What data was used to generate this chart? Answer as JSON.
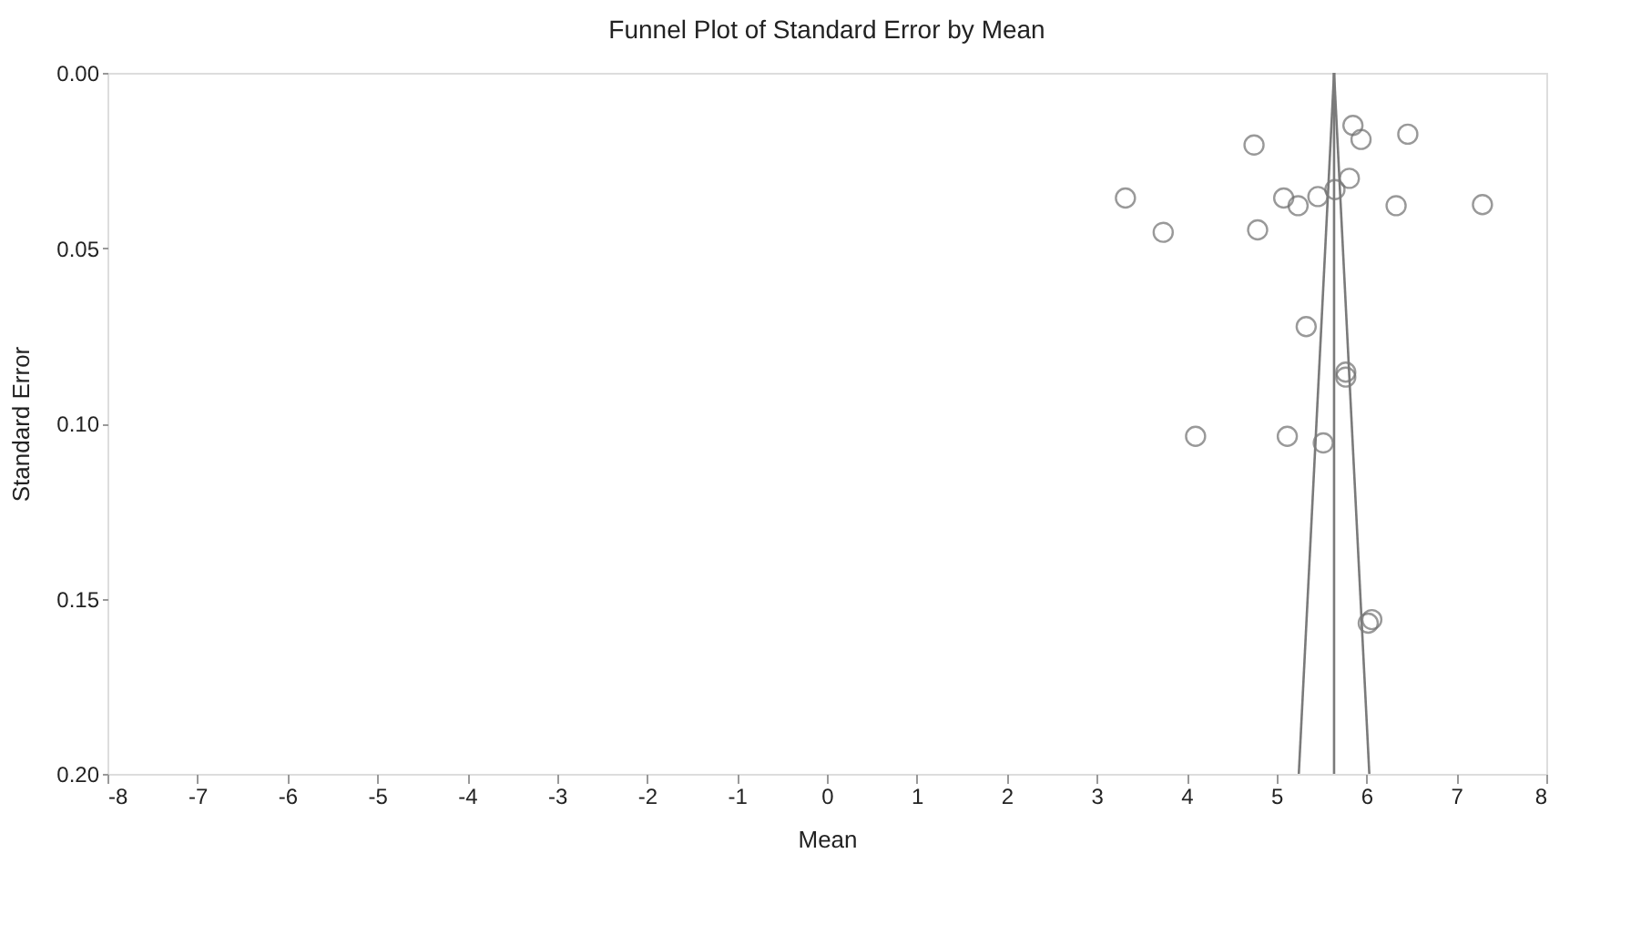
{
  "chart_data": {
    "type": "scatter",
    "title": "Funnel Plot of Standard Error by Mean",
    "xlabel": "Mean",
    "ylabel": "Standard Error",
    "xlim": [
      -8,
      8
    ],
    "xticks": [
      -8,
      -7,
      -6,
      -5,
      -4,
      -3,
      -2,
      -1,
      0,
      1,
      2,
      3,
      4,
      5,
      6,
      7,
      8
    ],
    "ylim": [
      0.2,
      0
    ],
    "yticks": [
      {
        "value": 0,
        "label": "0.00"
      },
      {
        "value": 0.05,
        "label": "0.05"
      },
      {
        "value": 0.1,
        "label": "0.10"
      },
      {
        "value": 0.15,
        "label": "0.15"
      },
      {
        "value": 0.2,
        "label": "0.20"
      }
    ],
    "grid": false,
    "series": [
      {
        "color": "#6e6e6e",
        "marker": "circle",
        "x": [
          5.85,
          5.94,
          6.46,
          4.75,
          3.32,
          3.74,
          4.79,
          5.08,
          5.24,
          5.46,
          5.65,
          5.81,
          6.33,
          7.29,
          5.33,
          5.77,
          5.77,
          4.1,
          5.12,
          5.52,
          6.06,
          6.02
        ],
        "values": [
          0.015,
          0.019,
          0.0175,
          0.0206,
          0.0357,
          0.0455,
          0.0448,
          0.0357,
          0.0379,
          0.0353,
          0.0333,
          0.0301,
          0.0379,
          0.0376,
          0.0724,
          0.0854,
          0.0868,
          0.1037,
          0.1037,
          0.1056,
          0.156,
          0.157
        ]
      },
      {
        "type": "line",
        "color": "#7a7a7a",
        "marker": "none",
        "x": [
          5.64,
          5.248
        ],
        "values": [
          0,
          0.2
        ]
      },
      {
        "type": "line",
        "color": "#7a7a7a",
        "marker": "none",
        "x": [
          5.64,
          5.64
        ],
        "values": [
          0,
          0.2
        ]
      },
      {
        "type": "line",
        "color": "#7a7a7a",
        "marker": "none",
        "x": [
          5.64,
          6.032
        ],
        "values": [
          0,
          0.2
        ]
      }
    ]
  }
}
